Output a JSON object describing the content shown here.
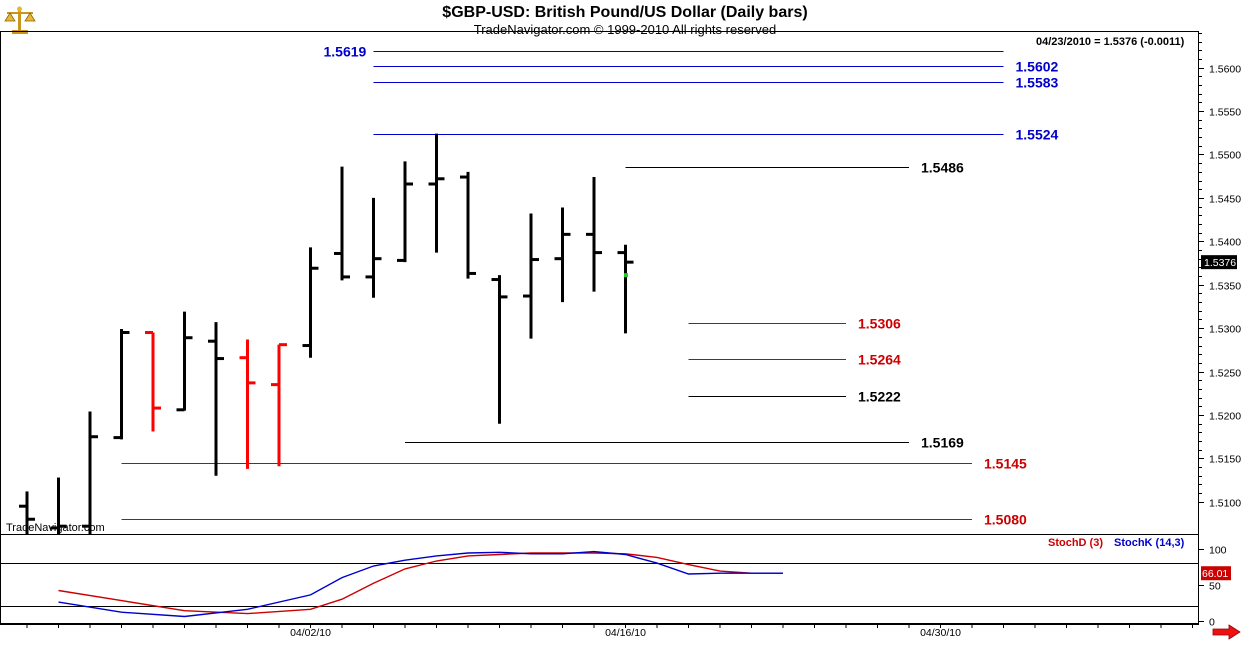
{
  "header": {
    "title": "$GBP-USD:  British Pound/US Dollar  (Daily bars)",
    "copyright": "TradeNavigator.com © 1999-2010 All rights reserved",
    "quote": "04/23/2010 = 1.5376 (-0.0011)",
    "watermark": "TradeNavigator.com"
  },
  "colors": {
    "up_bar": "#000000",
    "down_bar": "#ff0000",
    "resistance_line": "#0000cc",
    "support_line": "#cc0000",
    "pivot_line": "#000000",
    "stoch_d": "#cc0000",
    "stoch_k": "#0000cc",
    "current_marker": "#22cc22"
  },
  "chart_data": [
    {
      "type": "ohlc",
      "title": "$GBP-USD:  British Pound/US Dollar  (Daily bars)",
      "ylim": [
        1.5063,
        1.5641
      ],
      "y_ticks": [
        "1.5100",
        "1.5150",
        "1.5200",
        "1.5250",
        "1.5300",
        "1.5350",
        "1.5400",
        "1.5450",
        "1.5500",
        "1.5550",
        "1.5600"
      ],
      "x_tick_labels": [
        {
          "label": "04/02/10",
          "index": 9
        },
        {
          "label": "04/16/10",
          "index": 19
        },
        {
          "label": "04/30/10",
          "index": 29
        }
      ],
      "last_price_label": "1.5376",
      "current_marker_index": 19,
      "bars": [
        {
          "open": 1.5095,
          "high": 1.5112,
          "low": 1.5058,
          "close": 1.508,
          "color": "black"
        },
        {
          "open": 1.507,
          "high": 1.5128,
          "low": 1.5058,
          "close": 1.5072,
          "color": "black"
        },
        {
          "open": 1.5072,
          "high": 1.5204,
          "low": 1.5062,
          "close": 1.5175,
          "color": "black"
        },
        {
          "open": 1.5174,
          "high": 1.5299,
          "low": 1.5172,
          "close": 1.5295,
          "color": "black"
        },
        {
          "open": 1.5295,
          "high": 1.5295,
          "low": 1.5181,
          "close": 1.5208,
          "color": "red"
        },
        {
          "open": 1.5206,
          "high": 1.5319,
          "low": 1.5205,
          "close": 1.5289,
          "color": "black"
        },
        {
          "open": 1.5285,
          "high": 1.5307,
          "low": 1.513,
          "close": 1.5265,
          "color": "black"
        },
        {
          "open": 1.5266,
          "high": 1.5287,
          "low": 1.5138,
          "close": 1.5237,
          "color": "red"
        },
        {
          "open": 1.5235,
          "high": 1.5281,
          "low": 1.5141,
          "close": 1.5281,
          "color": "red"
        },
        {
          "open": 1.528,
          "high": 1.5393,
          "low": 1.5266,
          "close": 1.5369,
          "color": "black"
        },
        {
          "open": 1.5386,
          "high": 1.5486,
          "low": 1.5355,
          "close": 1.5359,
          "color": "black"
        },
        {
          "open": 1.5359,
          "high": 1.545,
          "low": 1.5335,
          "close": 1.538,
          "color": "black"
        },
        {
          "open": 1.5378,
          "high": 1.5492,
          "low": 1.5376,
          "close": 1.5466,
          "color": "black"
        },
        {
          "open": 1.5466,
          "high": 1.5524,
          "low": 1.5387,
          "close": 1.5472,
          "color": "black"
        },
        {
          "open": 1.5474,
          "high": 1.548,
          "low": 1.5357,
          "close": 1.5363,
          "color": "black"
        },
        {
          "open": 1.5356,
          "high": 1.5361,
          "low": 1.519,
          "close": 1.5336,
          "color": "black"
        },
        {
          "open": 1.5337,
          "high": 1.5432,
          "low": 1.5288,
          "close": 1.5379,
          "color": "black"
        },
        {
          "open": 1.538,
          "high": 1.5439,
          "low": 1.533,
          "close": 1.5408,
          "color": "black"
        },
        {
          "open": 1.5408,
          "high": 1.5474,
          "low": 1.5342,
          "close": 1.5387,
          "color": "black"
        },
        {
          "open": 1.5387,
          "high": 1.5396,
          "low": 1.5294,
          "close": 1.5376,
          "color": "black"
        }
      ],
      "levels": [
        {
          "label": "1.5619",
          "value": 1.5619,
          "kind": "resistance",
          "start_index": 11,
          "end_index": 31,
          "label_side": "left"
        },
        {
          "label": "1.5602",
          "value": 1.5602,
          "kind": "resistance",
          "start_index": 11,
          "end_index": 31,
          "label_side": "right"
        },
        {
          "label": "1.5583",
          "value": 1.5583,
          "kind": "resistance",
          "start_index": 11,
          "end_index": 31,
          "label_side": "right"
        },
        {
          "label": "1.5524",
          "value": 1.5524,
          "kind": "resistance",
          "start_index": 11,
          "end_index": 31,
          "label_side": "right"
        },
        {
          "label": "1.5486",
          "value": 1.5486,
          "kind": "pivot",
          "start_index": 19,
          "end_index": 28,
          "label_side": "right"
        },
        {
          "label": "1.5306",
          "value": 1.5306,
          "kind": "support",
          "start_index": 21,
          "end_index": 26,
          "label_side": "right"
        },
        {
          "label": "1.5264",
          "value": 1.5264,
          "kind": "support",
          "start_index": 21,
          "end_index": 26,
          "label_side": "right"
        },
        {
          "label": "1.5222",
          "value": 1.5222,
          "kind": "pivot",
          "start_index": 21,
          "end_index": 26,
          "label_side": "right"
        },
        {
          "label": "1.5169",
          "value": 1.5169,
          "kind": "pivot",
          "start_index": 12,
          "end_index": 28,
          "label_side": "right"
        },
        {
          "label": "1.5145",
          "value": 1.5145,
          "kind": "support",
          "start_index": 3,
          "end_index": 30,
          "label_side": "right"
        },
        {
          "label": "1.5080",
          "value": 1.508,
          "kind": "support",
          "start_index": 3,
          "end_index": 30,
          "label_side": "right"
        }
      ]
    },
    {
      "type": "line",
      "title": "",
      "ylim": [
        -3,
        119
      ],
      "y_ticks": [
        "100",
        "50",
        "0"
      ],
      "reference_lines": [
        20,
        80
      ],
      "last_value_label": "66.01",
      "x": [
        1,
        3,
        5,
        7,
        9,
        10,
        11,
        12,
        13,
        14,
        15,
        16,
        17,
        18,
        19,
        20,
        21,
        22,
        23,
        24
      ],
      "series": [
        {
          "name": "StochD (3)",
          "values": [
            42,
            28,
            14,
            10,
            16,
            30,
            52,
            72,
            83,
            90,
            92,
            94,
            94,
            94,
            93,
            88,
            78,
            69,
            66,
            66
          ]
        },
        {
          "name": "StochK (14,3)",
          "values": [
            26,
            12,
            6,
            16,
            36,
            60,
            76,
            84,
            90,
            94,
            95,
            93,
            93,
            96,
            92,
            80,
            65,
            66,
            66,
            66
          ]
        }
      ]
    }
  ]
}
